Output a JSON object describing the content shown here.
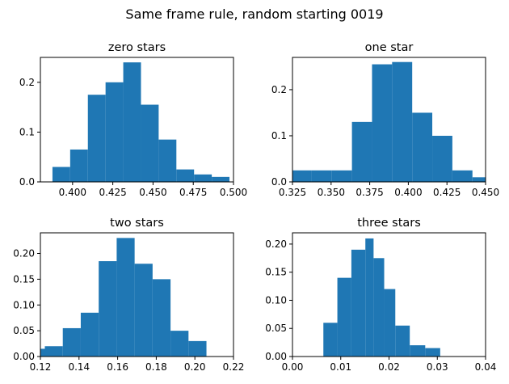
{
  "figure": {
    "suptitle": "Same frame rule, random starting 0019"
  },
  "colors": {
    "bar": "#1f77b4",
    "axis": "#000000",
    "background": "#ffffff"
  },
  "chart_data": [
    {
      "type": "bar",
      "title": "zero stars",
      "xlim": [
        0.38,
        0.5
      ],
      "ylim": [
        0,
        0.25
      ],
      "xticks": [
        0.4,
        0.425,
        0.45,
        0.475,
        0.5
      ],
      "xticklabels": [
        "0.400",
        "0.425",
        "0.450",
        "0.475",
        "0.500"
      ],
      "yticks": [
        0,
        0.1,
        0.2
      ],
      "yticklabels": [
        "0.0",
        "0.1",
        "0.2"
      ],
      "bins": [
        {
          "x0": 0.3875,
          "x1": 0.3985,
          "y": 0.03
        },
        {
          "x0": 0.3985,
          "x1": 0.4095,
          "y": 0.065
        },
        {
          "x0": 0.4095,
          "x1": 0.4205,
          "y": 0.175
        },
        {
          "x0": 0.4205,
          "x1": 0.4315,
          "y": 0.2
        },
        {
          "x0": 0.4315,
          "x1": 0.4425,
          "y": 0.24
        },
        {
          "x0": 0.4425,
          "x1": 0.4535,
          "y": 0.155
        },
        {
          "x0": 0.4535,
          "x1": 0.4645,
          "y": 0.085
        },
        {
          "x0": 0.4645,
          "x1": 0.4755,
          "y": 0.025
        },
        {
          "x0": 0.4755,
          "x1": 0.4865,
          "y": 0.015
        },
        {
          "x0": 0.4865,
          "x1": 0.4975,
          "y": 0.01
        }
      ]
    },
    {
      "type": "bar",
      "title": "one star",
      "xlim": [
        0.325,
        0.45
      ],
      "ylim": [
        0,
        0.27
      ],
      "xticks": [
        0.325,
        0.35,
        0.375,
        0.4,
        0.425,
        0.45
      ],
      "xticklabels": [
        "0.325",
        "0.350",
        "0.375",
        "0.400",
        "0.425",
        "0.450"
      ],
      "yticks": [
        0,
        0.1,
        0.2
      ],
      "yticklabels": [
        "0.0",
        "0.1",
        "0.2"
      ],
      "bins": [
        {
          "x0": 0.3245,
          "x1": 0.3375,
          "y": 0.025
        },
        {
          "x0": 0.3375,
          "x1": 0.3505,
          "y": 0.025
        },
        {
          "x0": 0.3505,
          "x1": 0.3635,
          "y": 0.025
        },
        {
          "x0": 0.3635,
          "x1": 0.3765,
          "y": 0.13
        },
        {
          "x0": 0.3765,
          "x1": 0.3895,
          "y": 0.255
        },
        {
          "x0": 0.3895,
          "x1": 0.4025,
          "y": 0.26
        },
        {
          "x0": 0.4025,
          "x1": 0.4155,
          "y": 0.15
        },
        {
          "x0": 0.4155,
          "x1": 0.4285,
          "y": 0.1
        },
        {
          "x0": 0.4285,
          "x1": 0.4415,
          "y": 0.025
        },
        {
          "x0": 0.4415,
          "x1": 0.4545,
          "y": 0.01
        }
      ]
    },
    {
      "type": "bar",
      "title": "two stars",
      "xlim": [
        0.12,
        0.22
      ],
      "ylim": [
        0,
        0.24
      ],
      "xticks": [
        0.12,
        0.14,
        0.16,
        0.18,
        0.2,
        0.22
      ],
      "xticklabels": [
        "0.12",
        "0.14",
        "0.16",
        "0.18",
        "0.20",
        "0.22"
      ],
      "yticks": [
        0,
        0.05,
        0.1,
        0.15,
        0.2
      ],
      "yticklabels": [
        "0.00",
        "0.05",
        "0.10",
        "0.15",
        "0.20"
      ],
      "bins": [
        {
          "x0": 0.12,
          "x1": 0.1223,
          "y": 0.015
        },
        {
          "x0": 0.1223,
          "x1": 0.1316,
          "y": 0.02
        },
        {
          "x0": 0.1316,
          "x1": 0.1409,
          "y": 0.055
        },
        {
          "x0": 0.1409,
          "x1": 0.1502,
          "y": 0.085
        },
        {
          "x0": 0.1502,
          "x1": 0.1595,
          "y": 0.185
        },
        {
          "x0": 0.1595,
          "x1": 0.1688,
          "y": 0.23
        },
        {
          "x0": 0.1688,
          "x1": 0.1781,
          "y": 0.18
        },
        {
          "x0": 0.1781,
          "x1": 0.1874,
          "y": 0.15
        },
        {
          "x0": 0.1874,
          "x1": 0.1967,
          "y": 0.05
        },
        {
          "x0": 0.1967,
          "x1": 0.206,
          "y": 0.03
        }
      ]
    },
    {
      "type": "bar",
      "title": "three stars",
      "xlim": [
        0,
        0.04
      ],
      "ylim": [
        0,
        0.22
      ],
      "xticks": [
        0,
        0.01,
        0.02,
        0.03,
        0.04
      ],
      "xticklabels": [
        "0.00",
        "0.01",
        "0.02",
        "0.03",
        "0.04"
      ],
      "yticks": [
        0,
        0.05,
        0.1,
        0.15,
        0.2
      ],
      "yticklabels": [
        "0.00",
        "0.05",
        "0.10",
        "0.15",
        "0.20"
      ],
      "bins": [
        {
          "x0": 0.0064,
          "x1": 0.0093,
          "y": 0.06
        },
        {
          "x0": 0.0093,
          "x1": 0.0122,
          "y": 0.14
        },
        {
          "x0": 0.0122,
          "x1": 0.0151,
          "y": 0.19
        },
        {
          "x0": 0.0151,
          "x1": 0.0168,
          "y": 0.21
        },
        {
          "x0": 0.0168,
          "x1": 0.019,
          "y": 0.175
        },
        {
          "x0": 0.019,
          "x1": 0.0213,
          "y": 0.12
        },
        {
          "x0": 0.0213,
          "x1": 0.0243,
          "y": 0.055
        },
        {
          "x0": 0.0243,
          "x1": 0.0275,
          "y": 0.02
        },
        {
          "x0": 0.0275,
          "x1": 0.0306,
          "y": 0.015
        }
      ]
    }
  ]
}
